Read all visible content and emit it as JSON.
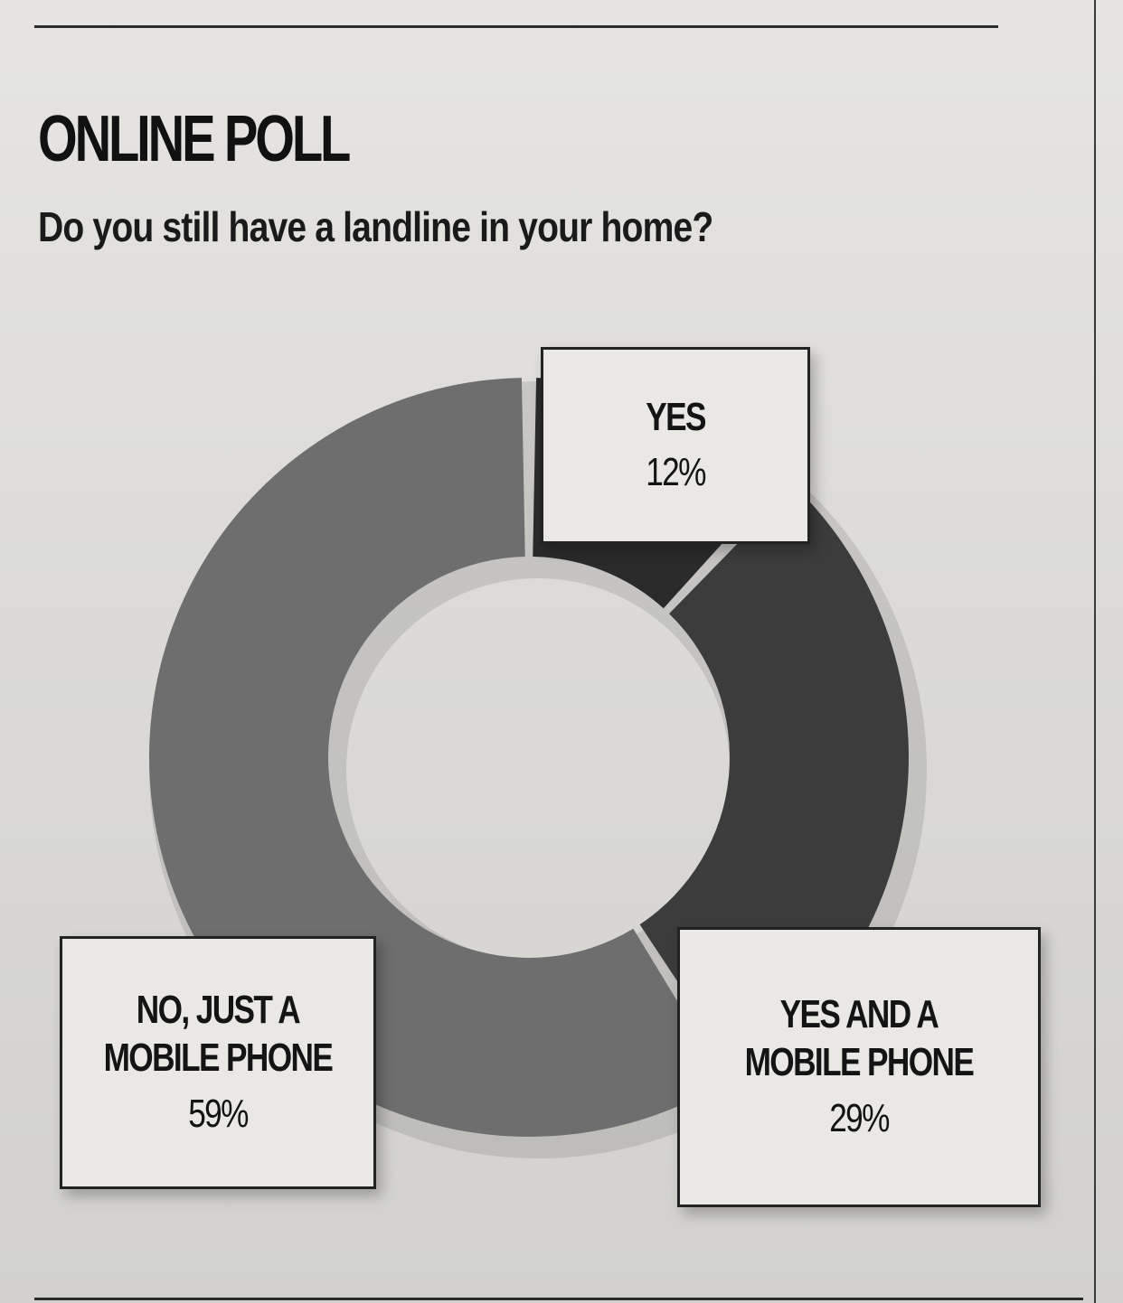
{
  "header": {
    "title": "ONLINE POLL",
    "question": "Do you still have a landline in your home?"
  },
  "chart_data": {
    "type": "pie",
    "title": "ONLINE POLL",
    "subtitle": "Do you still have a landline in your home?",
    "categories": [
      "YES",
      "YES AND A MOBILE PHONE",
      "NO, JUST A MOBILE PHONE"
    ],
    "values": [
      12,
      29,
      59
    ],
    "value_labels": [
      "12%",
      "29%",
      "59%"
    ],
    "unit": "%",
    "donut": true,
    "colors": [
      "#2a2a2a",
      "#3c3c3c",
      "#6e6e6e"
    ]
  }
}
